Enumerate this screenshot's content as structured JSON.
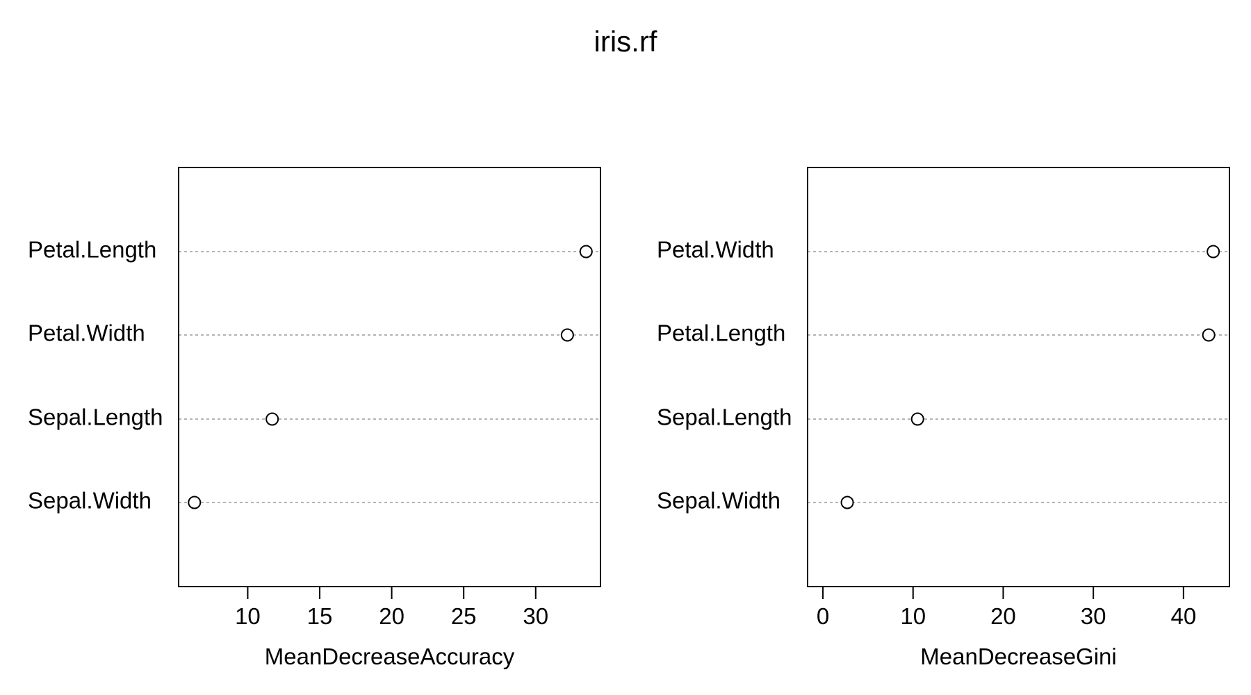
{
  "chart_data": {
    "type": "scatter",
    "title": "iris.rf",
    "panels": [
      {
        "xlabel": "MeanDecreaseAccuracy",
        "categories": [
          "Petal.Length",
          "Petal.Width",
          "Sepal.Length",
          "Sepal.Width"
        ],
        "values": [
          33.5,
          32.2,
          11.7,
          6.3
        ],
        "xlim": [
          5.2,
          34.5
        ],
        "xticks": [
          10,
          15,
          20,
          25,
          30
        ],
        "grid": "dashed horizontal"
      },
      {
        "xlabel": "MeanDecreaseGini",
        "categories": [
          "Petal.Width",
          "Petal.Length",
          "Sepal.Length",
          "Sepal.Width"
        ],
        "values": [
          43.3,
          42.8,
          10.5,
          2.7
        ],
        "xlim": [
          -1.7,
          45.1
        ],
        "xticks": [
          0,
          10,
          20,
          30,
          40
        ],
        "grid": "dashed horizontal"
      }
    ]
  }
}
